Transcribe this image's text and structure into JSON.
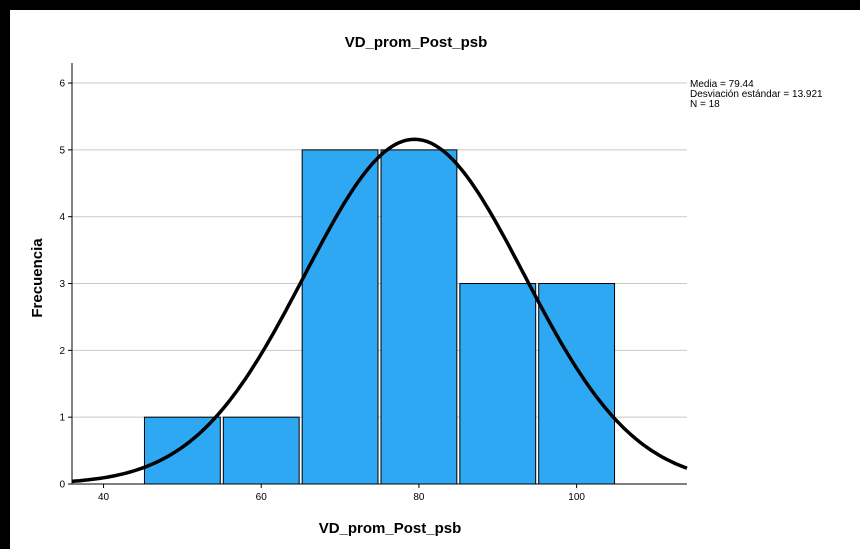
{
  "chart_data": {
    "type": "bar",
    "subtype": "histogram",
    "title": "VD_prom_Post_psb",
    "xlabel": "VD_prom_Post_psb",
    "ylabel": "Frecuencia",
    "bins": [
      {
        "start": 45,
        "end": 55,
        "count": 1
      },
      {
        "start": 55,
        "end": 65,
        "count": 1
      },
      {
        "start": 65,
        "end": 75,
        "count": 5
      },
      {
        "start": 75,
        "end": 85,
        "count": 5
      },
      {
        "start": 85,
        "end": 95,
        "count": 3
      },
      {
        "start": 95,
        "end": 105,
        "count": 3
      }
    ],
    "xlim": [
      36,
      114
    ],
    "ylim": [
      0,
      6.3
    ],
    "xticks": [
      40,
      60,
      80,
      100
    ],
    "yticks": [
      0,
      1,
      2,
      3,
      4,
      5,
      6
    ],
    "normal_curve": {
      "mean": 79.44,
      "sd": 13.921,
      "n": 18,
      "bin_width": 10
    },
    "stats_lines": [
      "Media = 79.44",
      "Desviación estándar = 13.921",
      "N = 18"
    ],
    "grid": "horizontal",
    "colors": {
      "bar": "#2ea8f3",
      "bar_edge": "#000000",
      "curve": "#000000",
      "grid": "#c8c8c8"
    }
  }
}
